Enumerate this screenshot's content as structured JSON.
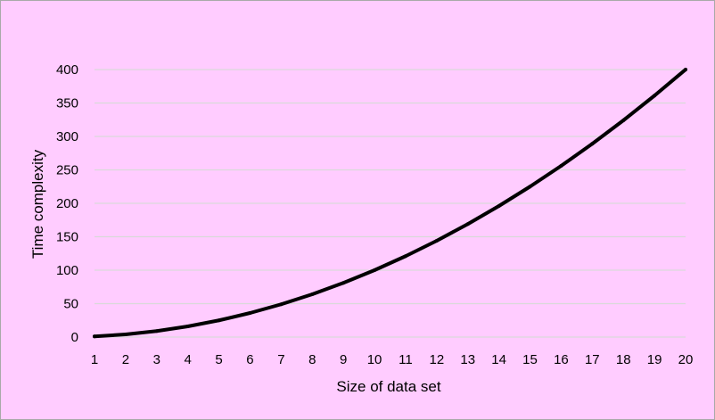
{
  "chart_data": {
    "type": "line",
    "title": "",
    "xlabel": "Size of data set",
    "ylabel": "Time complexity",
    "categories": [
      1,
      2,
      3,
      4,
      5,
      6,
      7,
      8,
      9,
      10,
      11,
      12,
      13,
      14,
      15,
      16,
      17,
      18,
      19,
      20
    ],
    "series": [
      {
        "values": [
          1,
          4,
          9,
          16,
          25,
          36,
          49,
          64,
          81,
          100,
          121,
          144,
          169,
          196,
          225,
          256,
          289,
          324,
          361,
          400
        ]
      }
    ],
    "yticks": [
      0,
      50,
      100,
      150,
      200,
      250,
      300,
      350,
      400
    ],
    "ylim": [
      0,
      400
    ],
    "grid": "horizontal",
    "legend": "none",
    "colors": {
      "background": "#ffccff",
      "line": "#000000",
      "grid": "#d9d9d9",
      "border": "#a9a9a9"
    }
  }
}
